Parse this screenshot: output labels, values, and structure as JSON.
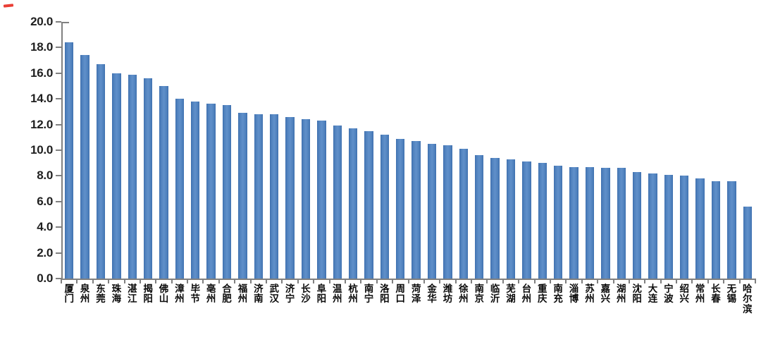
{
  "page": {
    "background": "#ffffff",
    "decor": {
      "cropped_red_mark_color": "#e8291f"
    }
  },
  "chart_data": {
    "type": "bar",
    "title": "",
    "xlabel": "",
    "ylabel": "",
    "legend_position": "none",
    "grid": false,
    "ylim": [
      0,
      20
    ],
    "ytick_step": 2.0,
    "ytick_labels": [
      "20.0",
      "18.0",
      "16.0",
      "14.0",
      "12.0",
      "10.0",
      "8.0",
      "6.0",
      "4.0",
      "2.0",
      "0.0"
    ],
    "bar_color": "#4f81bd",
    "axis_color": "#808080",
    "categories": [
      "厦门",
      "泉州",
      "东莞",
      "珠海",
      "湛江",
      "揭阳",
      "佛山",
      "漳州",
      "毕节",
      "亳州",
      "合肥",
      "福州",
      "济南",
      "武汉",
      "济宁",
      "长沙",
      "阜阳",
      "温州",
      "杭州",
      "南宁",
      "洛阳",
      "周口",
      "菏泽",
      "金华",
      "潍坊",
      "徐州",
      "南京",
      "临沂",
      "芜湖",
      "台州",
      "重庆",
      "南充",
      "淄博",
      "苏州",
      "嘉兴",
      "湖州",
      "沈阳",
      "大连",
      "宁波",
      "绍兴",
      "常州",
      "长春",
      "无锡",
      "哈尔滨"
    ],
    "values": [
      18.4,
      17.4,
      16.7,
      16.0,
      15.9,
      15.6,
      15.0,
      14.0,
      13.8,
      13.6,
      13.5,
      12.9,
      12.8,
      12.8,
      12.6,
      12.4,
      12.3,
      11.9,
      11.7,
      11.5,
      11.2,
      10.9,
      10.7,
      10.5,
      10.4,
      10.1,
      9.6,
      9.4,
      9.3,
      9.1,
      9.0,
      8.8,
      8.7,
      8.7,
      8.6,
      8.6,
      8.3,
      8.2,
      8.1,
      8.0,
      7.8,
      7.6,
      7.6,
      5.6
    ]
  }
}
